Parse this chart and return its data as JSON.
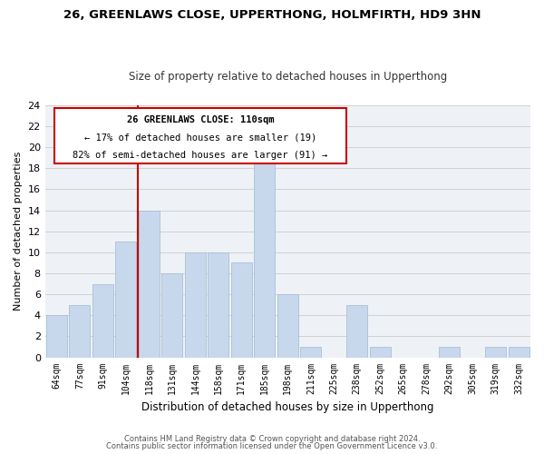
{
  "title": "26, GREENLAWS CLOSE, UPPERTHONG, HOLMFIRTH, HD9 3HN",
  "subtitle": "Size of property relative to detached houses in Upperthong",
  "xlabel": "Distribution of detached houses by size in Upperthong",
  "ylabel": "Number of detached properties",
  "bin_labels": [
    "64sqm",
    "77sqm",
    "91sqm",
    "104sqm",
    "118sqm",
    "131sqm",
    "144sqm",
    "158sqm",
    "171sqm",
    "185sqm",
    "198sqm",
    "211sqm",
    "225sqm",
    "238sqm",
    "252sqm",
    "265sqm",
    "278sqm",
    "292sqm",
    "305sqm",
    "319sqm",
    "332sqm"
  ],
  "bin_values": [
    4,
    5,
    7,
    11,
    14,
    8,
    10,
    10,
    9,
    19,
    6,
    1,
    0,
    5,
    1,
    0,
    0,
    1,
    0,
    1,
    1
  ],
  "bar_color": "#c8d8ec",
  "bar_edge_color": "#a8c0d8",
  "grid_color": "#d0d0d0",
  "annotation_box_edge": "#cc0000",
  "vline_color": "#cc0000",
  "ylim": [
    0,
    24
  ],
  "yticks": [
    0,
    2,
    4,
    6,
    8,
    10,
    12,
    14,
    16,
    18,
    20,
    22,
    24
  ],
  "annotation_title": "26 GREENLAWS CLOSE: 110sqm",
  "annotation_line1": "← 17% of detached houses are smaller (19)",
  "annotation_line2": "82% of semi-detached houses are larger (91) →",
  "vline_position": 3.5,
  "footer_line1": "Contains HM Land Registry data © Crown copyright and database right 2024.",
  "footer_line2": "Contains public sector information licensed under the Open Government Licence v3.0.",
  "background_color": "#ffffff",
  "plot_background": "#eef2f6"
}
